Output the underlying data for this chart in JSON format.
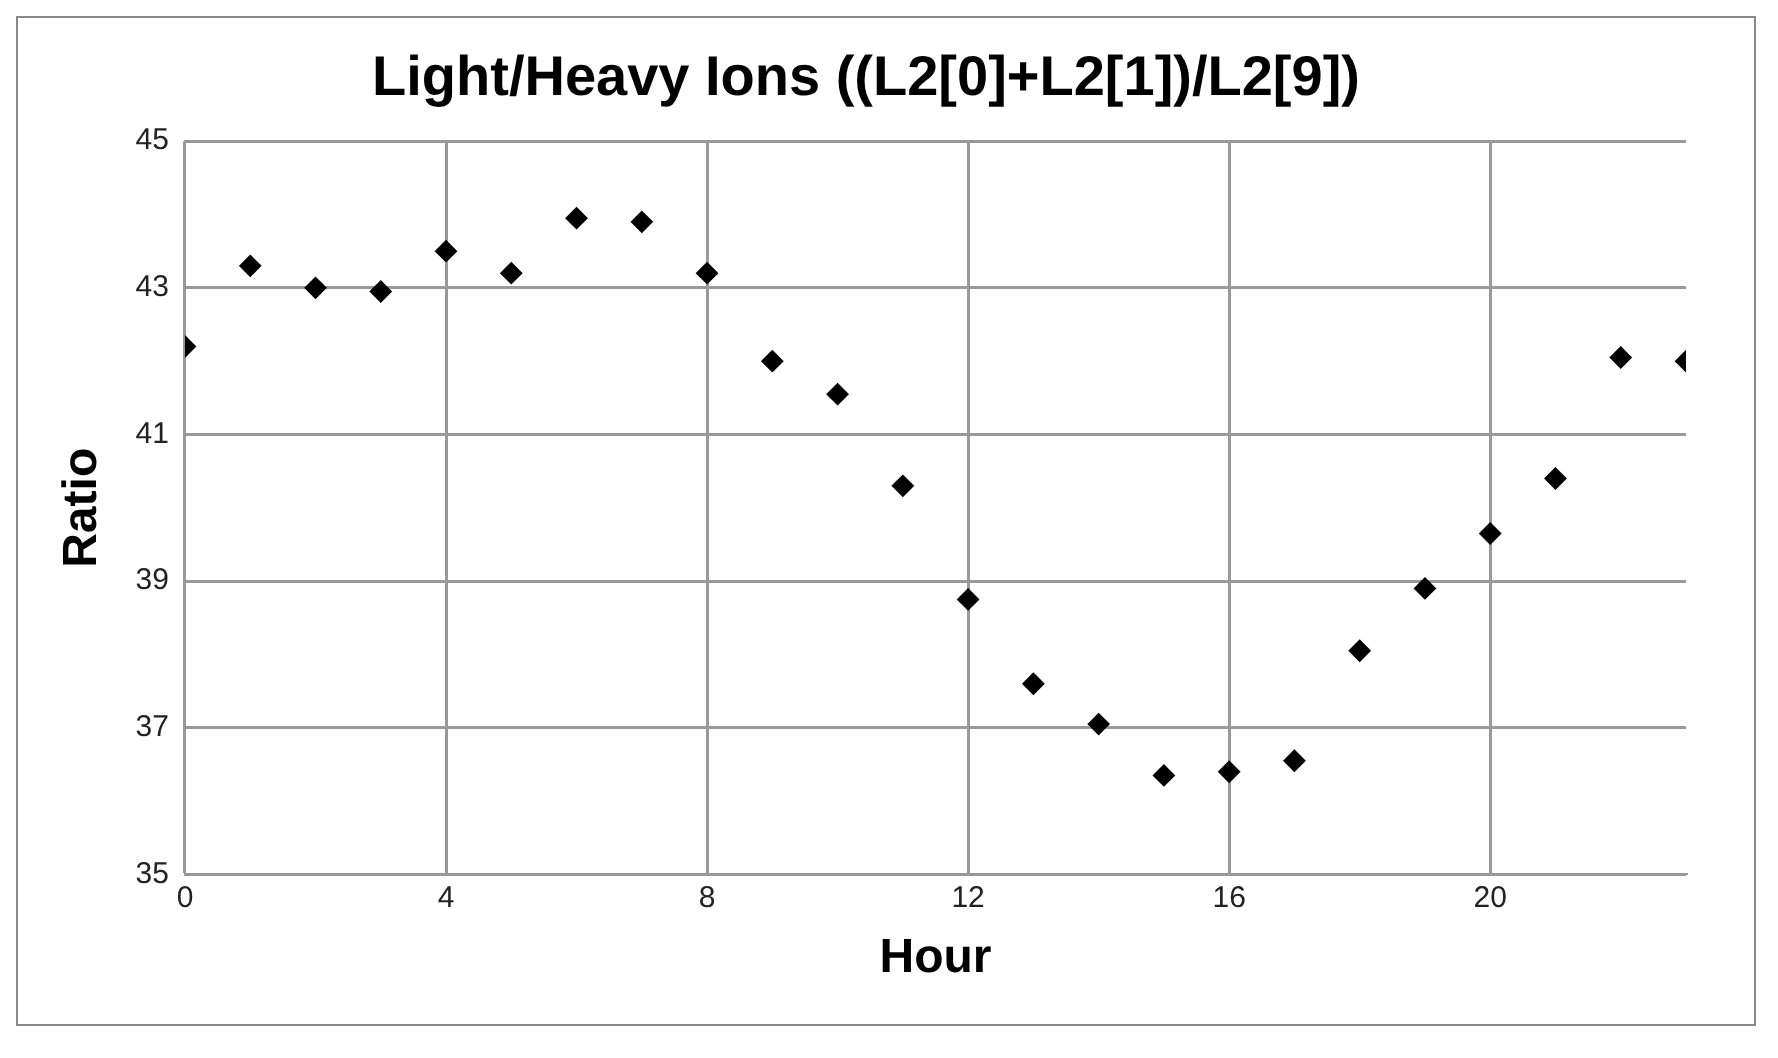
{
  "chart_data": {
    "type": "scatter",
    "title": "Light/Heavy Ions ((L2[0]+L2[1])/L2[9])",
    "xlabel": "Hour",
    "ylabel": "Ratio",
    "x": [
      0,
      1,
      2,
      3,
      4,
      5,
      6,
      7,
      8,
      9,
      10,
      11,
      12,
      13,
      14,
      15,
      16,
      17,
      18,
      19,
      20,
      21,
      22,
      23
    ],
    "series": [
      {
        "color": "#000000",
        "values": [
          42.2,
          43.3,
          43.0,
          42.95,
          43.5,
          43.2,
          43.95,
          43.9,
          43.2,
          42.0,
          41.55,
          40.3,
          38.75,
          37.6,
          37.05,
          36.35,
          36.4,
          36.55,
          38.05,
          38.9,
          39.65,
          40.4,
          42.05,
          42.0
        ]
      }
    ],
    "xlim": [
      0,
      23
    ],
    "xticks": [
      0,
      4,
      8,
      12,
      16,
      20
    ],
    "ylim": [
      35,
      45
    ],
    "yticks": [
      35,
      37,
      39,
      41,
      43,
      45
    ],
    "grid": true,
    "legend": false,
    "marker": "diamond"
  }
}
